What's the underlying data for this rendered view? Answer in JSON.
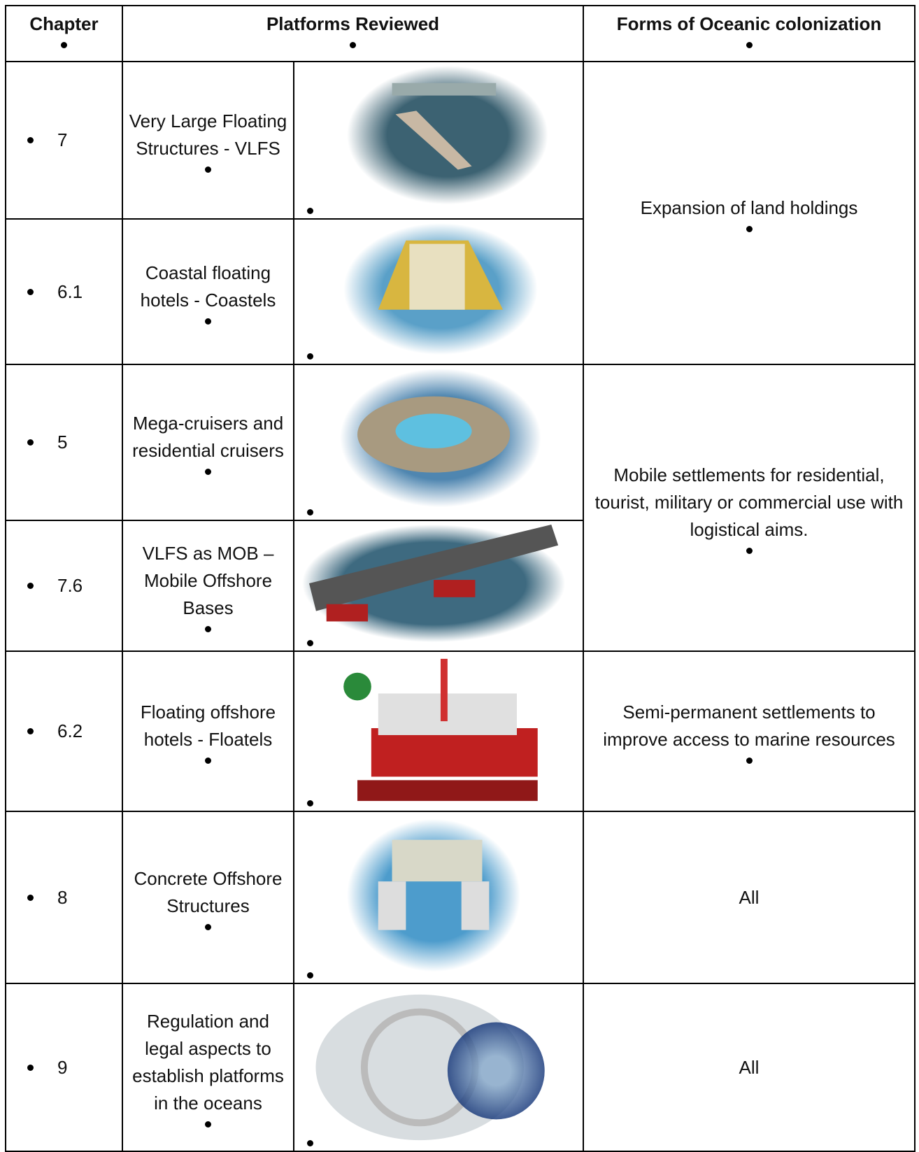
{
  "table": {
    "header": [
      "Chapter",
      "Platforms Reviewed",
      "Forms of Oceanic colonization"
    ],
    "rows": [
      {
        "chapter": "7",
        "platform": "Very Large Floating Structures - VLFS",
        "form": "Expansion of land holdings"
      },
      {
        "chapter": "6.1",
        "platform": "Coastal floating hotels - Coastels"
      },
      {
        "chapter": "5",
        "platform": "Mega-cruisers and residential cruisers",
        "form": "Mobile settlements for residential, tourist, military or commercial use with logistical aims."
      },
      {
        "chapter": "7.6",
        "platform": "VLFS  as MOB – Mobile Offshore Bases"
      },
      {
        "chapter": "6.2",
        "platform": "Floating offshore hotels - Floatels",
        "form": "Semi-permanent settlements to improve access to marine resources"
      },
      {
        "chapter": "8",
        "platform": "Concrete Offshore Structures",
        "form": "All"
      },
      {
        "chapter": "9",
        "platform": "Regulation and legal aspects to establish platforms in the oceans",
        "form": "All"
      }
    ]
  }
}
